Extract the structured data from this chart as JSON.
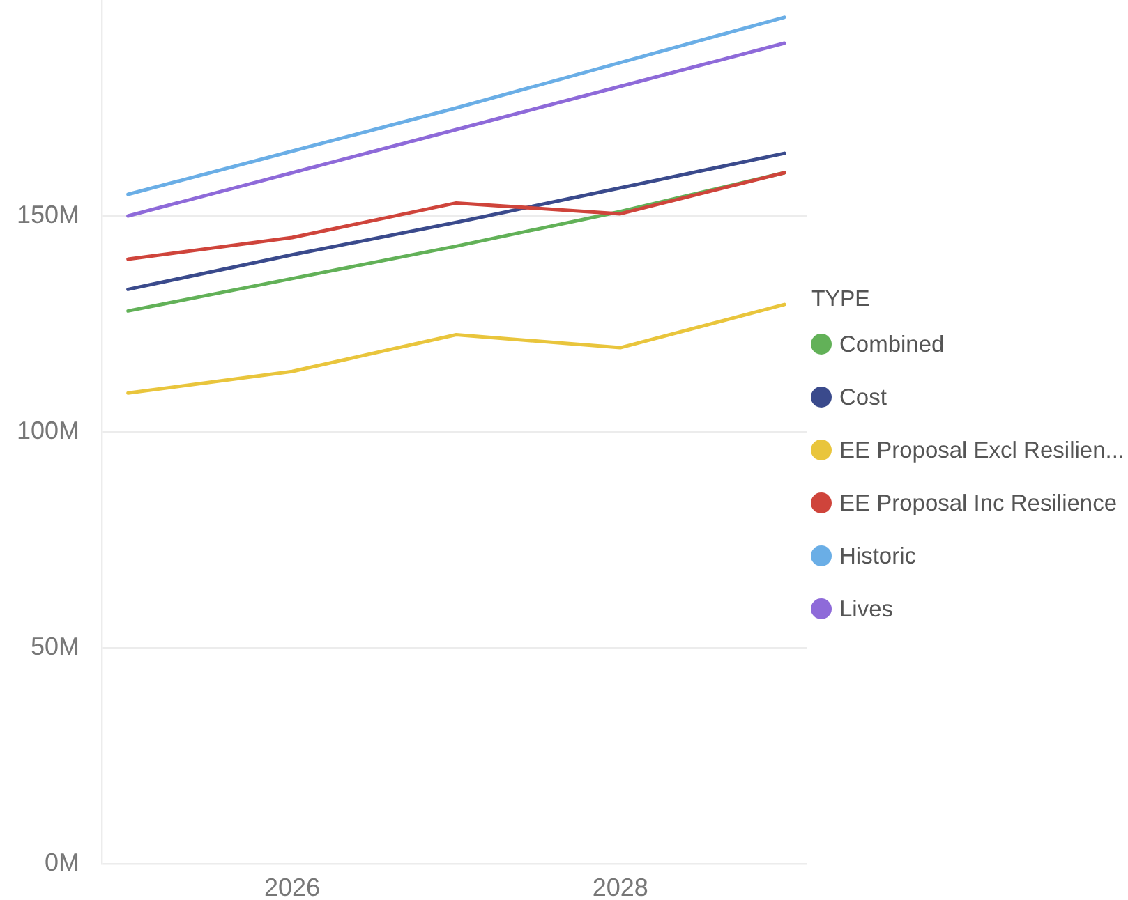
{
  "chart_data": {
    "type": "line",
    "x": [
      2025,
      2026,
      2027,
      2028,
      2029
    ],
    "series": [
      {
        "name": "Combined",
        "color": "#62b158",
        "values": [
          128,
          135.5,
          143,
          151,
          160
        ]
      },
      {
        "name": "Cost",
        "color": "#3a4a8c",
        "values": [
          133,
          141,
          148.5,
          156.5,
          164.5
        ]
      },
      {
        "name": "EE Proposal Excl Resilien...",
        "color": "#e9c53c",
        "values": [
          109,
          114,
          122.5,
          119.5,
          129.5
        ]
      },
      {
        "name": "EE Proposal Inc Resilience",
        "color": "#cf443b",
        "values": [
          140,
          145,
          153,
          150.5,
          160
        ]
      },
      {
        "name": "Historic",
        "color": "#6aaee6",
        "values": [
          155,
          165,
          175,
          185.5,
          196
        ]
      },
      {
        "name": "Lives",
        "color": "#8e6ad9",
        "values": [
          150,
          160,
          170,
          180,
          190
        ]
      }
    ],
    "xlim": [
      2024.84,
      2029.14
    ],
    "xticks": [
      2026,
      2028
    ],
    "ylim": [
      0,
      200
    ],
    "yticks": [
      {
        "value": 0,
        "label": "0M"
      },
      {
        "value": 50,
        "label": "50M"
      },
      {
        "value": 100,
        "label": "100M"
      },
      {
        "value": 150,
        "label": "150M"
      }
    ],
    "legend": "right",
    "legend_title": "TYPE",
    "grid": "y",
    "marker": "none",
    "line_style": "solid"
  }
}
